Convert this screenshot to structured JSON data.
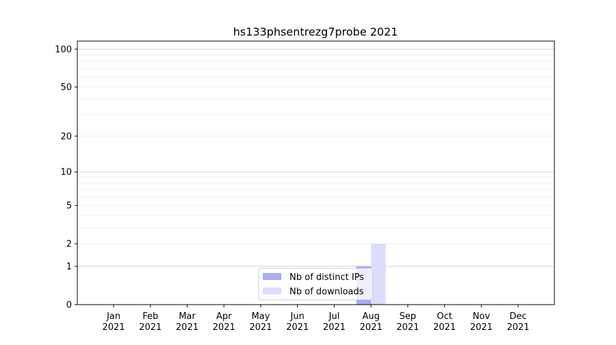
{
  "chart_data": {
    "type": "bar",
    "title": "hs133phsentrezg7probe 2021",
    "xlabel": "",
    "ylabel": "",
    "yscale": "log(1+y)",
    "ylim": [
      0,
      116
    ],
    "yticks": [
      0,
      1,
      2,
      5,
      10,
      20,
      50,
      100
    ],
    "grid": true,
    "legend_placement": "lower-center",
    "categories": [
      "Jan\n2021",
      "Feb\n2021",
      "Mar\n2021",
      "Apr\n2021",
      "May\n2021",
      "Jun\n2021",
      "Jul\n2021",
      "Aug\n2021",
      "Sep\n2021",
      "Oct\n2021",
      "Nov\n2021",
      "Dec\n2021"
    ],
    "series": [
      {
        "name": "Nb of distinct IPs",
        "color": "#aaaaf5",
        "values": [
          0,
          0,
          0,
          0,
          0,
          0,
          0,
          1,
          0,
          0,
          0,
          0
        ]
      },
      {
        "name": "Nb of downloads",
        "color": "#dcdcfb",
        "values": [
          0,
          0,
          0,
          0,
          0,
          0,
          0,
          2,
          0,
          0,
          0,
          0
        ]
      }
    ]
  }
}
